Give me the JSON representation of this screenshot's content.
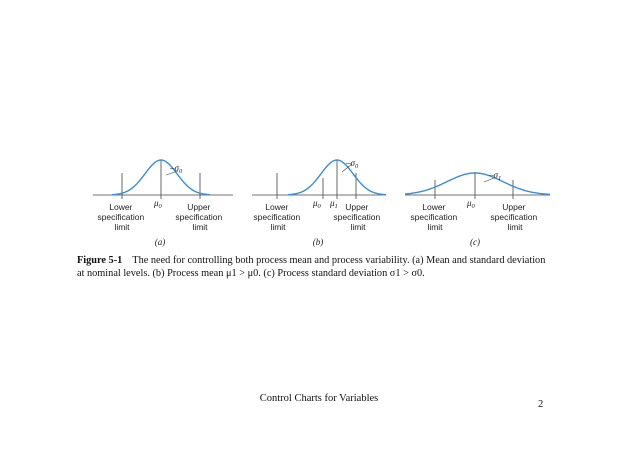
{
  "panels": [
    {
      "tag": "(a)",
      "lower_spec": [
        "Lower",
        "specification",
        "limit"
      ],
      "upper_spec": [
        "Upper",
        "specification",
        "limit"
      ],
      "mean_labels": [
        {
          "base": "μ",
          "sub": "0"
        }
      ],
      "sigma_label": {
        "base": "σ",
        "sub": "0"
      }
    },
    {
      "tag": "(b)",
      "lower_spec": [
        "Lower",
        "specification",
        "limit"
      ],
      "upper_spec": [
        "Upper",
        "specification",
        "limit"
      ],
      "mean_labels": [
        {
          "base": "μ",
          "sub": "0"
        },
        {
          "base": "μ",
          "sub": "1"
        }
      ],
      "sigma_label": {
        "base": "σ",
        "sub": "0"
      }
    },
    {
      "tag": "(c)",
      "lower_spec": [
        "Lower",
        "specification",
        "limit"
      ],
      "upper_spec": [
        "Upper",
        "specification",
        "limit"
      ],
      "mean_labels": [
        {
          "base": "μ",
          "sub": "0"
        }
      ],
      "sigma_label": {
        "base": "σ",
        "sub": "1"
      }
    }
  ],
  "caption": {
    "label": "Figure 5-1",
    "line1": "The need for controlling both process mean and process variability. (a) Mean and standard deviation",
    "line2": "at nominal levels. (b) Process mean μ1 > μ0. (c) Process standard deviation σ1 > σ0."
  },
  "footer": {
    "title": "Control Charts for Variables",
    "page_number": "2"
  },
  "colors": {
    "curve": "#3a8fd6",
    "axis": "#444444",
    "text": "#222222"
  }
}
